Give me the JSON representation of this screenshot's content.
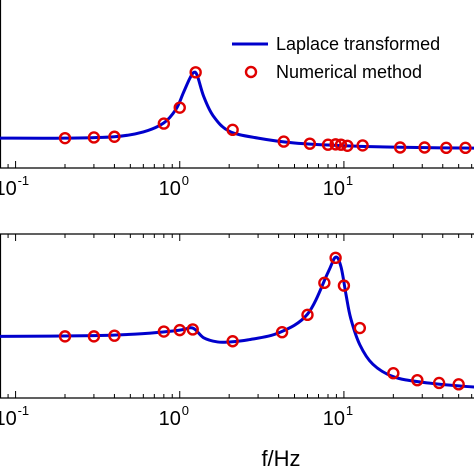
{
  "chart_data": [
    {
      "type": "line",
      "xscale": "log",
      "x_tick_labels": [
        {
          "base": "10",
          "exp": "-1",
          "value": 0.1
        },
        {
          "base": "10",
          "exp": "0",
          "value": 1
        },
        {
          "base": "10",
          "exp": "1",
          "value": 10
        }
      ],
      "legend": {
        "placement": "top-right",
        "entries": [
          "Laplace transformed",
          "Numerical method"
        ]
      },
      "series": [
        {
          "name": "Laplace transformed",
          "style": "line",
          "color": "#0000cc",
          "x": [
            0.08,
            0.2,
            0.4,
            0.6,
            0.8,
            0.95,
            1.05,
            1.15,
            1.22,
            1.28,
            1.4,
            1.6,
            2.0,
            3.0,
            5.0,
            10,
            20,
            40,
            80
          ],
          "y": [
            0.0,
            0.0,
            0.2,
            0.9,
            2.2,
            4.2,
            6.5,
            8.6,
            9.5,
            9.0,
            6.0,
            3.2,
            1.0,
            0.0,
            -0.7,
            -1.1,
            -1.3,
            -1.4,
            -1.45
          ]
        },
        {
          "name": "Numerical method",
          "style": "markers",
          "color": "#e00000",
          "x": [
            0.2,
            0.3,
            0.4,
            0.8,
            1.0,
            1.25,
            2.1,
            4.3,
            6.2,
            8.0,
            8.9,
            9.6,
            10.5,
            13,
            22,
            31,
            42,
            55
          ],
          "y": [
            0.0,
            0.1,
            0.2,
            2.1,
            4.4,
            9.5,
            1.2,
            -0.5,
            -0.8,
            -0.95,
            -0.9,
            -0.95,
            -1.1,
            -1.05,
            -1.35,
            -1.35,
            -1.4,
            -1.4
          ]
        }
      ]
    },
    {
      "type": "line",
      "xscale": "log",
      "x_tick_labels": [
        {
          "base": "10",
          "exp": "-1",
          "value": 0.1
        },
        {
          "base": "10",
          "exp": "0",
          "value": 1
        },
        {
          "base": "10",
          "exp": "1",
          "value": 10
        }
      ],
      "xlabel": "f/Hz",
      "series": [
        {
          "name": "Laplace transformed",
          "style": "line",
          "color": "#0000cc",
          "x": [
            0.08,
            0.3,
            0.6,
            1.0,
            1.2,
            1.4,
            1.7,
            2.0,
            2.6,
            4.0,
            6.0,
            8.0,
            8.9,
            9.6,
            10.3,
            11,
            12.5,
            15,
            20,
            30,
            55,
            80
          ],
          "y": [
            0.0,
            0.05,
            0.2,
            0.45,
            0.6,
            -0.1,
            -0.4,
            -0.4,
            -0.25,
            0.25,
            1.6,
            4.6,
            5.7,
            5.0,
            3.0,
            1.3,
            -0.6,
            -2.0,
            -2.9,
            -3.3,
            -3.6,
            -3.7
          ]
        },
        {
          "name": "Numerical method",
          "style": "markers",
          "color": "#e00000",
          "x": [
            0.2,
            0.3,
            0.4,
            0.8,
            1.0,
            1.2,
            2.1,
            4.2,
            6.0,
            7.6,
            8.9,
            10.0,
            12.5,
            20,
            28,
            38,
            50
          ],
          "y": [
            0.0,
            0.0,
            0.05,
            0.35,
            0.45,
            0.5,
            -0.35,
            0.3,
            1.55,
            3.85,
            5.65,
            3.65,
            0.6,
            -2.65,
            -3.15,
            -3.35,
            -3.45
          ]
        }
      ]
    }
  ]
}
